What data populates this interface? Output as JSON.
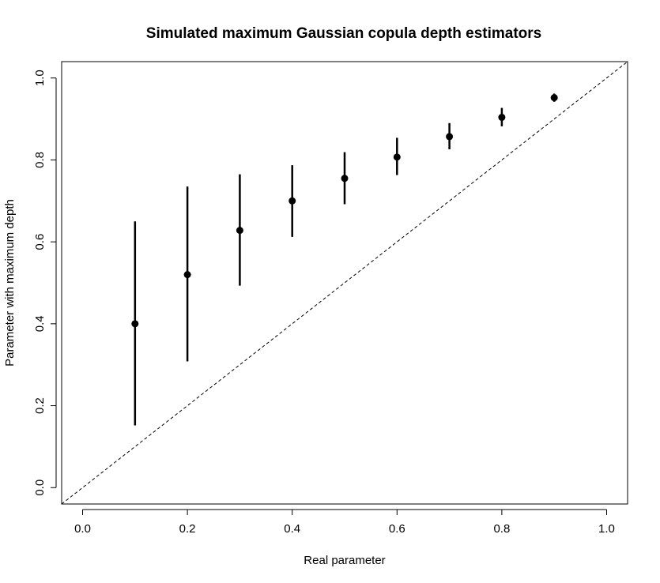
{
  "chart_data": {
    "type": "scatter",
    "title": "Simulated maximum Gaussian copula depth estimators",
    "xlabel": "Real parameter",
    "ylabel": "Parameter with maximum depth",
    "xlim": [
      -0.04,
      1.04
    ],
    "ylim": [
      -0.04,
      1.04
    ],
    "xticks": [
      0.0,
      0.2,
      0.4,
      0.6,
      0.8,
      1.0
    ],
    "yticks": [
      0.0,
      0.2,
      0.4,
      0.6,
      0.8,
      1.0
    ],
    "xtick_labels": [
      "0.0",
      "0.2",
      "0.4",
      "0.6",
      "0.8",
      "1.0"
    ],
    "ytick_labels": [
      "0.0",
      "0.2",
      "0.4",
      "0.6",
      "0.8",
      "1.0"
    ],
    "grid": false,
    "reference_line": {
      "style": "dashed",
      "slope": 1,
      "intercept": 0
    },
    "series": [
      {
        "x": [
          0.1,
          0.2,
          0.3,
          0.4,
          0.5,
          0.6,
          0.7,
          0.8,
          0.9
        ],
        "y": [
          0.4,
          0.52,
          0.628,
          0.7,
          0.755,
          0.807,
          0.857,
          0.904,
          0.952
        ],
        "lower": [
          0.152,
          0.308,
          0.493,
          0.612,
          0.692,
          0.763,
          0.826,
          0.882,
          0.942
        ],
        "upper": [
          0.65,
          0.735,
          0.765,
          0.787,
          0.819,
          0.854,
          0.89,
          0.927,
          0.962
        ]
      }
    ]
  }
}
